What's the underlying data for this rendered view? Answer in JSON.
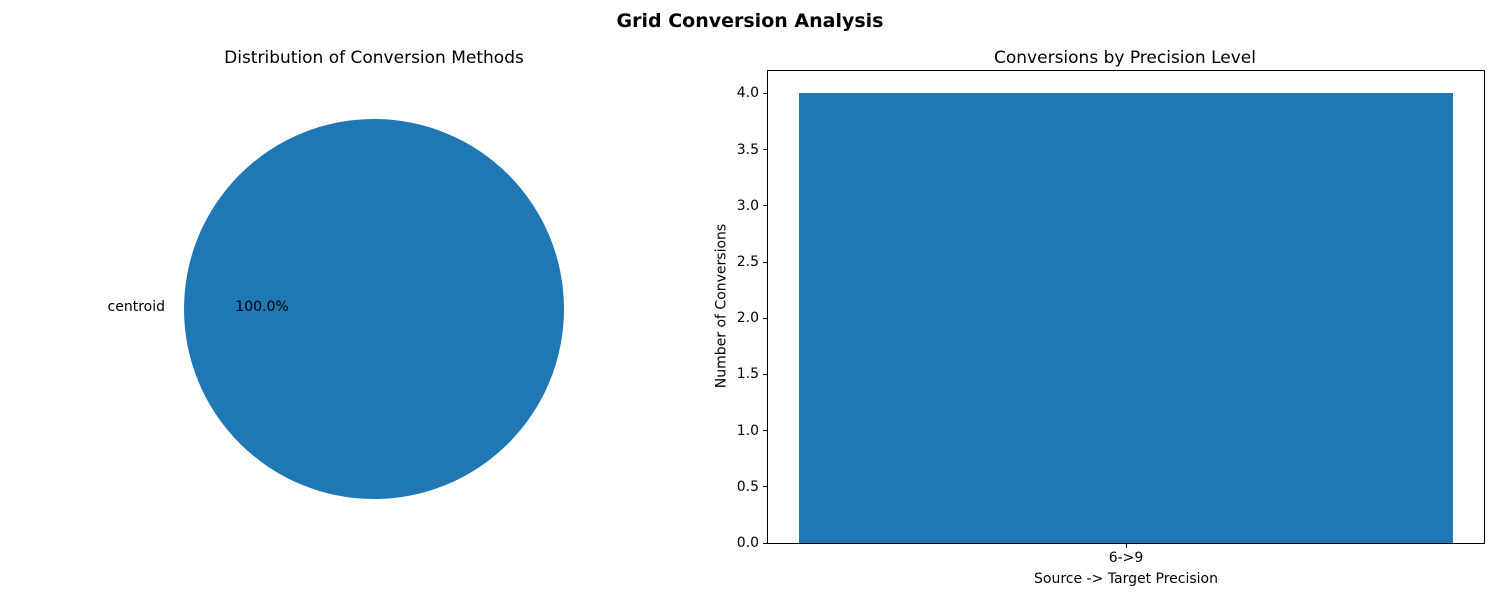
{
  "figure": {
    "title": "Grid Conversion Analysis",
    "background_color": "#ffffff",
    "text_color": "#000000"
  },
  "chart_data": [
    {
      "type": "pie",
      "title": "Distribution of Conversion Methods",
      "labels": [
        "centroid"
      ],
      "values": [
        100.0
      ],
      "percent_labels": [
        "100.0%"
      ],
      "colors": [
        "#1f77b4"
      ],
      "legend_position": "none"
    },
    {
      "type": "bar",
      "title": "Conversions by Precision Level",
      "categories": [
        "6->9"
      ],
      "values": [
        4
      ],
      "xlabel": "Source -> Target Precision",
      "ylabel": "Number of Conversions",
      "ylim": [
        0,
        4.2
      ],
      "yticks": [
        "0.0",
        "0.5",
        "1.0",
        "1.5",
        "2.0",
        "2.5",
        "3.0",
        "3.5",
        "4.0"
      ],
      "bar_color": "#1f77b4",
      "grid": false,
      "legend_position": "none"
    }
  ]
}
